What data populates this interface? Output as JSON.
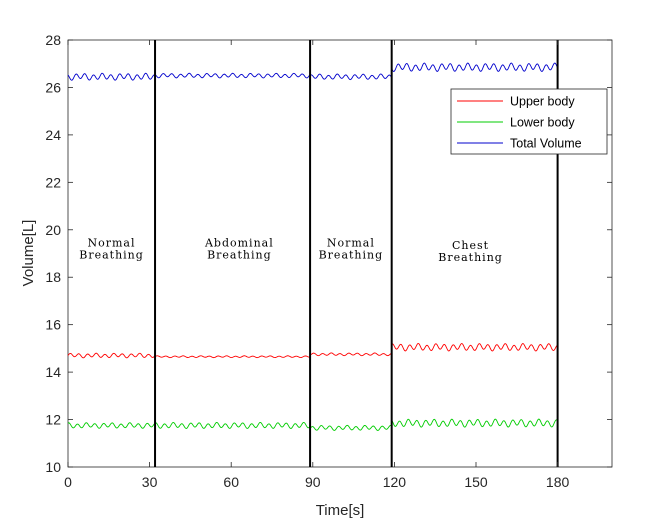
{
  "chart_data": {
    "type": "line",
    "xlabel": "Time[s]",
    "ylabel": "Volume[L]",
    "xlim": [
      0,
      200
    ],
    "ylim": [
      10,
      28
    ],
    "xticks": [
      0,
      30,
      60,
      90,
      120,
      150,
      180
    ],
    "yticks": [
      10,
      12,
      14,
      16,
      18,
      20,
      22,
      24,
      26,
      28
    ],
    "grid": false,
    "legend_position": "top-right",
    "series": [
      {
        "name": "Upper body",
        "color": "#ff0000",
        "segments": [
          {
            "x_start": 0,
            "x_end": 32,
            "mean": 14.7,
            "amplitude": 0.1
          },
          {
            "x_start": 32,
            "x_end": 89,
            "mean": 14.65,
            "amplitude": 0.04
          },
          {
            "x_start": 89,
            "x_end": 119,
            "mean": 14.75,
            "amplitude": 0.06
          },
          {
            "x_start": 119,
            "x_end": 180,
            "mean": 15.05,
            "amplitude": 0.16
          }
        ]
      },
      {
        "name": "Lower body",
        "color": "#00cc00",
        "segments": [
          {
            "x_start": 0,
            "x_end": 32,
            "mean": 11.75,
            "amplitude": 0.12
          },
          {
            "x_start": 32,
            "x_end": 89,
            "mean": 11.75,
            "amplitude": 0.13
          },
          {
            "x_start": 89,
            "x_end": 119,
            "mean": 11.65,
            "amplitude": 0.11
          },
          {
            "x_start": 119,
            "x_end": 180,
            "mean": 11.85,
            "amplitude": 0.17
          }
        ]
      },
      {
        "name": "Total Volume",
        "color": "#0000cc",
        "segments": [
          {
            "x_start": 0,
            "x_end": 32,
            "mean": 26.45,
            "amplitude": 0.15
          },
          {
            "x_start": 32,
            "x_end": 89,
            "mean": 26.5,
            "amplitude": 0.1
          },
          {
            "x_start": 89,
            "x_end": 119,
            "mean": 26.45,
            "amplitude": 0.12
          },
          {
            "x_start": 119,
            "x_end": 180,
            "mean": 26.85,
            "amplitude": 0.18
          }
        ]
      }
    ],
    "phase_boundaries": [
      32,
      89,
      119,
      180
    ],
    "phases": [
      {
        "line1": "Normal",
        "line2": "Breathing",
        "x": 16,
        "y": 19.3
      },
      {
        "line1": "Abdominal",
        "line2": "Breathing",
        "x": 63,
        "y": 19.3
      },
      {
        "line1": "Normal",
        "line2": "Breathing",
        "x": 104,
        "y": 19.3
      },
      {
        "line1": "Chest",
        "line2": "Breathing",
        "x": 148,
        "y": 19.2
      }
    ]
  }
}
